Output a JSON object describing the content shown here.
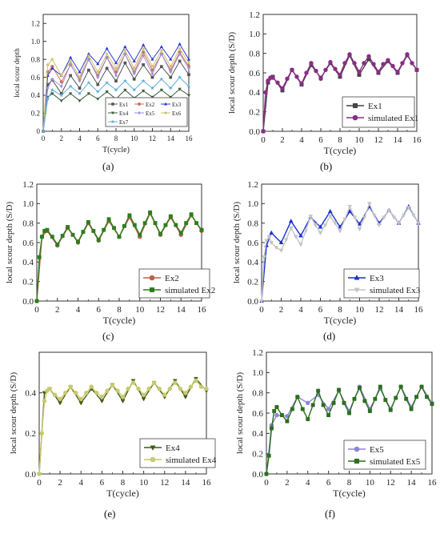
{
  "caption_labels": [
    "(a)",
    "(b)",
    "(c)",
    "(d)",
    "(e)",
    "(f)"
  ],
  "chart_data": [
    {
      "type": "line",
      "panel": "(a)",
      "xlabel": "T(cycle)",
      "ylabel": "local scour depth",
      "xlim": [
        0,
        16
      ],
      "ylim": [
        0,
        1.3
      ],
      "xticks": [
        0,
        2,
        4,
        6,
        8,
        10,
        12,
        14,
        16
      ],
      "yticks": [
        0,
        0.2,
        0.4,
        0.6,
        0.8,
        1.0,
        1.2
      ],
      "x": [
        0,
        0.5,
        1,
        2,
        3,
        4,
        5,
        6,
        7,
        8,
        9,
        10,
        11,
        12,
        13,
        14,
        15,
        16
      ],
      "legend_position": "lower-right",
      "series": [
        {
          "name": "Ex1",
          "color": "#555555",
          "marker": "square",
          "values": [
            0,
            0.52,
            0.57,
            0.42,
            0.62,
            0.48,
            0.68,
            0.52,
            0.7,
            0.56,
            0.76,
            0.58,
            0.74,
            0.6,
            0.72,
            0.6,
            0.78,
            0.63
          ]
        },
        {
          "name": "Ex2",
          "color": "#d2705a",
          "marker": "circle",
          "values": [
            0,
            0.66,
            0.72,
            0.55,
            0.74,
            0.58,
            0.8,
            0.62,
            0.82,
            0.66,
            0.86,
            0.66,
            0.88,
            0.68,
            0.86,
            0.68,
            0.88,
            0.72
          ]
        },
        {
          "name": "Ex3",
          "color": "#2b3bd6",
          "marker": "triangle",
          "values": [
            0,
            0.62,
            0.7,
            0.62,
            0.82,
            0.66,
            0.86,
            0.75,
            0.92,
            0.76,
            0.94,
            0.78,
            0.96,
            0.8,
            0.94,
            0.8,
            0.97,
            0.8
          ]
        },
        {
          "name": "Ex4",
          "color": "#3b5e3b",
          "marker": "triangle-down",
          "values": [
            0,
            0.38,
            0.42,
            0.34,
            0.42,
            0.34,
            0.42,
            0.36,
            0.44,
            0.36,
            0.46,
            0.37,
            0.45,
            0.38,
            0.46,
            0.38,
            0.47,
            0.4
          ]
        },
        {
          "name": "Ex5",
          "color": "#9b8fe0",
          "marker": "diamond",
          "values": [
            0,
            0.48,
            0.58,
            0.5,
            0.75,
            0.56,
            0.8,
            0.6,
            0.82,
            0.62,
            0.86,
            0.64,
            0.84,
            0.64,
            0.86,
            0.66,
            0.86,
            0.7
          ]
        },
        {
          "name": "Ex6",
          "color": "#c9c46a",
          "marker": "star",
          "values": [
            0,
            0.74,
            0.8,
            0.62,
            0.78,
            0.6,
            0.84,
            0.66,
            0.86,
            0.7,
            0.9,
            0.7,
            0.92,
            0.72,
            0.9,
            0.72,
            0.92,
            0.76
          ]
        },
        {
          "name": "Ex7",
          "color": "#5fb0d8",
          "marker": "star",
          "values": [
            0,
            0.36,
            0.46,
            0.4,
            0.5,
            0.42,
            0.54,
            0.44,
            0.54,
            0.46,
            0.56,
            0.46,
            0.56,
            0.48,
            0.58,
            0.48,
            0.6,
            0.5
          ]
        }
      ]
    },
    {
      "type": "line",
      "panel": "(b)",
      "xlabel": "T(cycle)",
      "ylabel": "local scour depth (S/D)",
      "xlim": [
        0,
        16
      ],
      "ylim": [
        0,
        1.2
      ],
      "xticks": [
        0,
        2,
        4,
        6,
        8,
        10,
        12,
        14,
        16
      ],
      "yticks": [
        0.0,
        0.2,
        0.4,
        0.6,
        0.8,
        1.0,
        1.2
      ],
      "legend_position": "lower-right",
      "series": [
        {
          "name": "Ex1",
          "color": "#444444",
          "marker": "square",
          "x": [
            0,
            0.5,
            1,
            2,
            3,
            4,
            5,
            6,
            7,
            8,
            9,
            10,
            11,
            12,
            13,
            14,
            15,
            16
          ],
          "values": [
            0,
            0.5,
            0.56,
            0.42,
            0.63,
            0.48,
            0.68,
            0.55,
            0.7,
            0.56,
            0.78,
            0.58,
            0.74,
            0.6,
            0.72,
            0.6,
            0.78,
            0.63
          ]
        },
        {
          "name": "simulated Ex1",
          "color": "#8a2d86",
          "marker": "circle",
          "x": [
            0,
            0.25,
            0.5,
            0.75,
            1,
            1.5,
            2,
            2.5,
            3,
            3.5,
            4,
            4.5,
            5,
            5.5,
            6,
            6.5,
            7,
            7.5,
            8,
            8.5,
            9,
            9.5,
            10,
            10.5,
            11,
            11.5,
            12,
            12.5,
            13,
            13.5,
            14,
            14.5,
            15,
            15.5,
            16
          ],
          "values": [
            0,
            0.4,
            0.52,
            0.55,
            0.55,
            0.5,
            0.44,
            0.54,
            0.63,
            0.56,
            0.49,
            0.6,
            0.7,
            0.62,
            0.54,
            0.63,
            0.71,
            0.64,
            0.58,
            0.7,
            0.79,
            0.7,
            0.61,
            0.7,
            0.77,
            0.69,
            0.61,
            0.69,
            0.73,
            0.67,
            0.61,
            0.7,
            0.79,
            0.7,
            0.63
          ]
        }
      ]
    },
    {
      "type": "line",
      "panel": "(c)",
      "xlabel": "T(cycle)",
      "ylabel": "local scour depth (S/D)",
      "xlim": [
        0,
        16
      ],
      "ylim": [
        0,
        1.2
      ],
      "xticks": [
        0,
        2,
        4,
        6,
        8,
        10,
        12,
        14,
        16
      ],
      "yticks": [
        0.0,
        0.2,
        0.4,
        0.6,
        0.8,
        1.0,
        1.2
      ],
      "legend_position": "lower-right",
      "series": [
        {
          "name": "Ex2",
          "color": "#c0604a",
          "marker": "circle",
          "x": [
            0,
            0.5,
            1,
            2,
            3,
            4,
            5,
            6,
            7,
            8,
            9,
            10,
            11,
            12,
            13,
            14,
            15,
            16
          ],
          "values": [
            0,
            0.66,
            0.72,
            0.57,
            0.75,
            0.6,
            0.8,
            0.62,
            0.82,
            0.66,
            0.86,
            0.66,
            0.9,
            0.68,
            0.86,
            0.68,
            0.88,
            0.72
          ]
        },
        {
          "name": "simulated Ex2",
          "color": "#2d7d1e",
          "marker": "square",
          "x": [
            0,
            0.25,
            0.5,
            0.75,
            1,
            1.5,
            2,
            2.5,
            3,
            3.5,
            4,
            4.5,
            5,
            5.5,
            6,
            6.5,
            7,
            7.5,
            8,
            8.5,
            9,
            9.5,
            10,
            10.5,
            11,
            11.5,
            12,
            12.5,
            13,
            13.5,
            14,
            14.5,
            15,
            15.5,
            16
          ],
          "values": [
            0,
            0.45,
            0.66,
            0.72,
            0.73,
            0.66,
            0.58,
            0.67,
            0.76,
            0.68,
            0.61,
            0.71,
            0.81,
            0.72,
            0.63,
            0.73,
            0.84,
            0.75,
            0.66,
            0.77,
            0.88,
            0.78,
            0.68,
            0.8,
            0.91,
            0.8,
            0.69,
            0.78,
            0.87,
            0.78,
            0.7,
            0.8,
            0.89,
            0.8,
            0.73
          ]
        }
      ]
    },
    {
      "type": "line",
      "panel": "(d)",
      "xlabel": "T(cycle)",
      "ylabel": "local scour depth (S/D)",
      "xlim": [
        0,
        16
      ],
      "ylim": [
        0,
        1.2
      ],
      "xticks": [
        0,
        2,
        4,
        6,
        8,
        10,
        12,
        14,
        16
      ],
      "yticks": [
        0.0,
        0.2,
        0.4,
        0.6,
        0.8,
        1.0,
        1.2
      ],
      "legend_position": "lower-right",
      "series": [
        {
          "name": "Ex3",
          "color": "#1a2fd8",
          "marker": "triangle",
          "x": [
            0,
            0.5,
            1,
            2,
            3,
            4,
            5,
            6,
            7,
            8,
            9,
            10,
            11,
            12,
            13,
            14,
            15,
            16
          ],
          "values": [
            0,
            0.57,
            0.7,
            0.6,
            0.82,
            0.67,
            0.86,
            0.76,
            0.92,
            0.76,
            0.92,
            0.79,
            0.97,
            0.8,
            0.93,
            0.8,
            0.97,
            0.8
          ]
        },
        {
          "name": "simulated Ex3",
          "color": "#c4c4c4",
          "marker": "triangle-down",
          "x": [
            0,
            0.25,
            0.5,
            0.75,
            1,
            1.5,
            2,
            2.5,
            3,
            3.5,
            4,
            4.5,
            5,
            5.5,
            6,
            6.5,
            7,
            7.5,
            8,
            8.5,
            9,
            9.5,
            10,
            10.5,
            11,
            11.5,
            12,
            12.5,
            13,
            13.5,
            14,
            14.5,
            15,
            15.5,
            16
          ],
          "values": [
            0,
            0.45,
            0.62,
            0.66,
            0.6,
            0.55,
            0.52,
            0.63,
            0.75,
            0.66,
            0.58,
            0.72,
            0.87,
            0.78,
            0.7,
            0.78,
            0.87,
            0.8,
            0.72,
            0.84,
            0.97,
            0.86,
            0.74,
            0.86,
            1.0,
            0.88,
            0.78,
            0.86,
            0.93,
            0.86,
            0.8,
            0.88,
            0.96,
            0.88,
            0.8
          ]
        }
      ]
    },
    {
      "type": "line",
      "panel": "(e)",
      "xlabel": "T(cycle)",
      "ylabel": "local scour depth (S/D)",
      "xlim": [
        0,
        16
      ],
      "ylim": [
        0,
        0.6
      ],
      "xticks": [
        0,
        2,
        4,
        6,
        8,
        10,
        12,
        14,
        16
      ],
      "yticks": [
        0.0,
        0.2,
        0.4
      ],
      "legend_position": "lower-right",
      "series": [
        {
          "name": "Ex4",
          "color": "#3f5a10",
          "marker": "triangle-down",
          "x": [
            0,
            0.5,
            1,
            2,
            3,
            4,
            5,
            6,
            7,
            8,
            9,
            10,
            11,
            12,
            13,
            14,
            15,
            16
          ],
          "values": [
            0,
            0.4,
            0.42,
            0.35,
            0.43,
            0.35,
            0.42,
            0.36,
            0.44,
            0.36,
            0.46,
            0.37,
            0.45,
            0.38,
            0.46,
            0.38,
            0.47,
            0.41
          ]
        },
        {
          "name": "simulated Ex4",
          "color": "#c9c96e",
          "marker": "circle",
          "x": [
            0,
            0.25,
            0.5,
            0.75,
            1,
            1.5,
            2,
            2.5,
            3,
            3.5,
            4,
            4.5,
            5,
            5.5,
            6,
            6.5,
            7,
            7.5,
            8,
            8.5,
            9,
            9.5,
            10,
            10.5,
            11,
            11.5,
            12,
            12.5,
            13,
            13.5,
            14,
            14.5,
            15,
            15.5,
            16
          ],
          "values": [
            0,
            0.2,
            0.36,
            0.41,
            0.42,
            0.39,
            0.37,
            0.4,
            0.43,
            0.4,
            0.37,
            0.4,
            0.43,
            0.4,
            0.38,
            0.41,
            0.44,
            0.41,
            0.38,
            0.42,
            0.45,
            0.42,
            0.39,
            0.42,
            0.45,
            0.42,
            0.39,
            0.42,
            0.45,
            0.42,
            0.4,
            0.43,
            0.46,
            0.43,
            0.42
          ]
        }
      ]
    },
    {
      "type": "line",
      "panel": "(f)",
      "xlabel": "T(cycle)",
      "ylabel": "local scour depth (S/D)",
      "xlim": [
        0,
        16
      ],
      "ylim": [
        0,
        1.2
      ],
      "xticks": [
        0,
        2,
        4,
        6,
        8,
        10,
        12,
        14,
        16
      ],
      "yticks": [
        0.0,
        0.2,
        0.4,
        0.6,
        0.8,
        1.0,
        1.2
      ],
      "legend_position": "lower-right",
      "series": [
        {
          "name": "Ex5",
          "color": "#8f86d8",
          "marker": "circle",
          "x": [
            0,
            0.5,
            1,
            2,
            3,
            4,
            5,
            6,
            7,
            8,
            9,
            10,
            11,
            12,
            13,
            14,
            15,
            16
          ],
          "values": [
            0,
            0.48,
            0.58,
            0.57,
            0.76,
            0.7,
            0.78,
            0.64,
            0.82,
            0.62,
            0.86,
            0.64,
            0.84,
            0.64,
            0.86,
            0.66,
            0.86,
            0.7
          ]
        },
        {
          "name": "simulated Ex5",
          "color": "#2c6f1c",
          "marker": "square",
          "x": [
            0,
            0.25,
            0.5,
            0.75,
            1,
            1.5,
            2,
            2.5,
            3,
            3.5,
            4,
            4.5,
            5,
            5.5,
            6,
            6.5,
            7,
            7.5,
            8,
            8.5,
            9,
            9.5,
            10,
            10.5,
            11,
            11.5,
            12,
            12.5,
            13,
            13.5,
            14,
            14.5,
            15,
            15.5,
            16
          ],
          "values": [
            0,
            0.18,
            0.45,
            0.62,
            0.66,
            0.58,
            0.52,
            0.64,
            0.76,
            0.64,
            0.54,
            0.68,
            0.82,
            0.68,
            0.58,
            0.7,
            0.83,
            0.7,
            0.6,
            0.74,
            0.85,
            0.72,
            0.62,
            0.74,
            0.86,
            0.73,
            0.63,
            0.75,
            0.86,
            0.74,
            0.64,
            0.76,
            0.86,
            0.76,
            0.69
          ]
        }
      ]
    }
  ]
}
